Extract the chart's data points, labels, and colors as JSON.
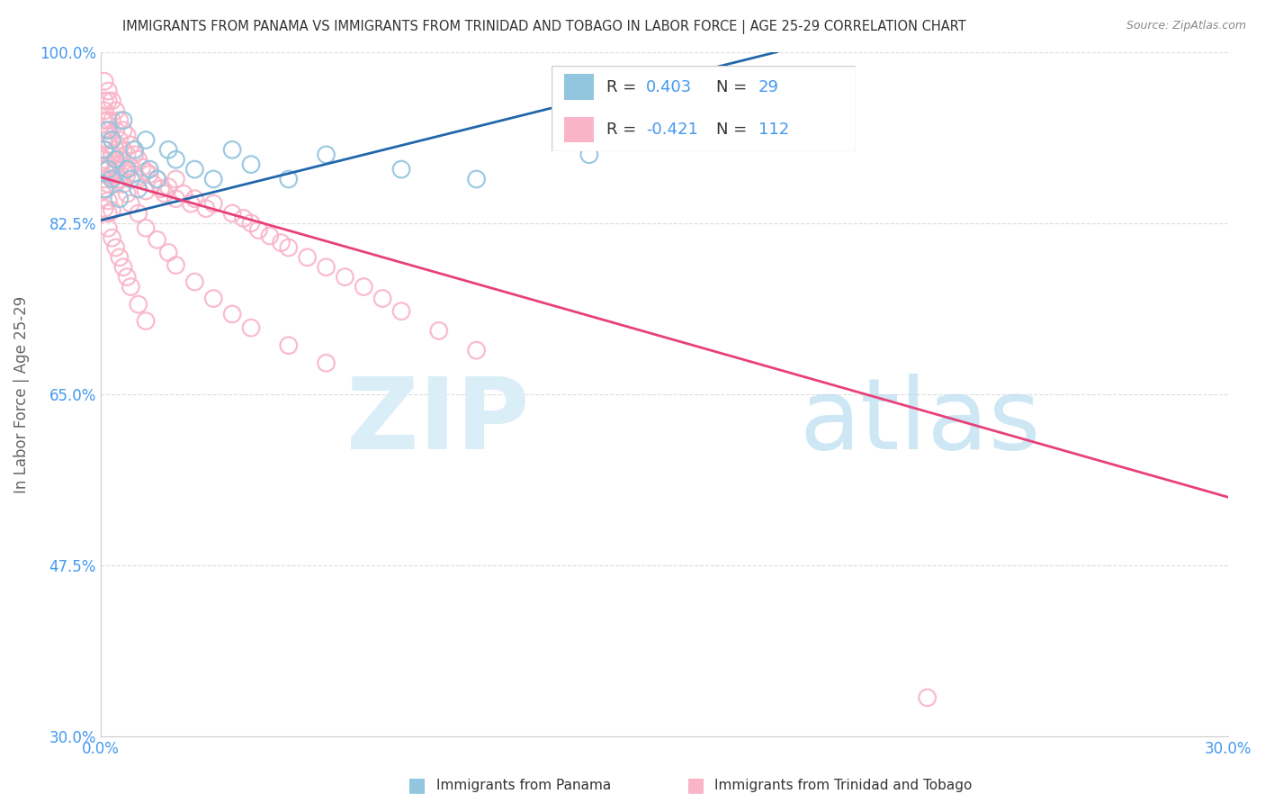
{
  "title": "IMMIGRANTS FROM PANAMA VS IMMIGRANTS FROM TRINIDAD AND TOBAGO IN LABOR FORCE | AGE 25-29 CORRELATION CHART",
  "source": "Source: ZipAtlas.com",
  "ylabel": "In Labor Force | Age 25-29",
  "xlabel_panama": "Immigrants from Panama",
  "xlabel_tt": "Immigrants from Trinidad and Tobago",
  "xlim": [
    0.0,
    0.3
  ],
  "ylim": [
    0.3,
    1.0
  ],
  "yticks": [
    1.0,
    0.825,
    0.65,
    0.475,
    0.3
  ],
  "ytick_labels": [
    "100.0%",
    "82.5%",
    "65.0%",
    "47.5%",
    "30.0%"
  ],
  "xtick_positions": [
    0.0,
    0.05,
    0.1,
    0.15,
    0.2,
    0.25,
    0.3
  ],
  "xtick_labels": [
    "0.0%",
    "",
    "",
    "",
    "",
    "",
    "30.0%"
  ],
  "panama_scatter_color": "#92c5de",
  "tt_scatter_color": "#f9b4c8",
  "panama_line_color": "#2166ac",
  "tt_line_color": "#e8417a",
  "R_panama": 0.403,
  "N_panama": 29,
  "R_tt": -0.421,
  "N_tt": 112,
  "blue_color": "#4499ee",
  "text_color": "#333333",
  "grid_color": "#dddddd",
  "panama_line_x": [
    0.0,
    0.18
  ],
  "panama_line_y": [
    0.828,
    1.0
  ],
  "tt_line_x": [
    0.0,
    0.3
  ],
  "tt_line_y": [
    0.872,
    0.545
  ],
  "panama_scatter_x": [
    0.001,
    0.001,
    0.002,
    0.002,
    0.003,
    0.003,
    0.004,
    0.005,
    0.006,
    0.007,
    0.008,
    0.009,
    0.01,
    0.012,
    0.013,
    0.015,
    0.018,
    0.02,
    0.025,
    0.03,
    0.035,
    0.04,
    0.05,
    0.06,
    0.08,
    0.1,
    0.13,
    0.155,
    0.175
  ],
  "panama_scatter_y": [
    0.86,
    0.9,
    0.88,
    0.92,
    0.91,
    0.87,
    0.89,
    0.85,
    0.93,
    0.88,
    0.87,
    0.9,
    0.86,
    0.91,
    0.88,
    0.87,
    0.9,
    0.89,
    0.88,
    0.87,
    0.9,
    0.885,
    0.87,
    0.895,
    0.88,
    0.87,
    0.895,
    0.93,
    0.94
  ],
  "tt_scatter_x": [
    0.001,
    0.001,
    0.001,
    0.001,
    0.001,
    0.001,
    0.001,
    0.001,
    0.001,
    0.001,
    0.002,
    0.002,
    0.002,
    0.002,
    0.002,
    0.002,
    0.002,
    0.003,
    0.003,
    0.003,
    0.003,
    0.003,
    0.004,
    0.004,
    0.004,
    0.004,
    0.005,
    0.005,
    0.005,
    0.005,
    0.006,
    0.006,
    0.006,
    0.007,
    0.007,
    0.007,
    0.008,
    0.008,
    0.009,
    0.009,
    0.01,
    0.01,
    0.011,
    0.012,
    0.012,
    0.013,
    0.014,
    0.015,
    0.016,
    0.017,
    0.018,
    0.02,
    0.02,
    0.022,
    0.024,
    0.025,
    0.028,
    0.03,
    0.035,
    0.038,
    0.04,
    0.042,
    0.045,
    0.048,
    0.05,
    0.055,
    0.06,
    0.065,
    0.07,
    0.075,
    0.08,
    0.09,
    0.1,
    0.001,
    0.001,
    0.002,
    0.002,
    0.003,
    0.003,
    0.004,
    0.004,
    0.005,
    0.006,
    0.007,
    0.008,
    0.01,
    0.012,
    0.015,
    0.018,
    0.02,
    0.025,
    0.03,
    0.035,
    0.04,
    0.05,
    0.06,
    0.001,
    0.002,
    0.003,
    0.22,
    0.001,
    0.001,
    0.002,
    0.002,
    0.003,
    0.004,
    0.005,
    0.006,
    0.007,
    0.008,
    0.01,
    0.012
  ],
  "tt_scatter_y": [
    0.97,
    0.95,
    0.94,
    0.93,
    0.92,
    0.91,
    0.9,
    0.89,
    0.88,
    0.87,
    0.96,
    0.95,
    0.93,
    0.91,
    0.895,
    0.88,
    0.865,
    0.95,
    0.93,
    0.91,
    0.895,
    0.875,
    0.94,
    0.92,
    0.9,
    0.88,
    0.93,
    0.91,
    0.89,
    0.87,
    0.92,
    0.9,
    0.88,
    0.915,
    0.895,
    0.875,
    0.905,
    0.882,
    0.895,
    0.875,
    0.89,
    0.87,
    0.882,
    0.878,
    0.858,
    0.875,
    0.865,
    0.87,
    0.86,
    0.855,
    0.862,
    0.87,
    0.85,
    0.855,
    0.845,
    0.85,
    0.84,
    0.845,
    0.835,
    0.83,
    0.825,
    0.818,
    0.812,
    0.805,
    0.8,
    0.79,
    0.78,
    0.77,
    0.76,
    0.748,
    0.735,
    0.715,
    0.695,
    0.92,
    0.9,
    0.905,
    0.885,
    0.895,
    0.875,
    0.885,
    0.865,
    0.875,
    0.865,
    0.855,
    0.845,
    0.835,
    0.82,
    0.808,
    0.795,
    0.782,
    0.765,
    0.748,
    0.732,
    0.718,
    0.7,
    0.682,
    0.86,
    0.848,
    0.838,
    0.34,
    0.858,
    0.84,
    0.835,
    0.82,
    0.81,
    0.8,
    0.79,
    0.78,
    0.77,
    0.76,
    0.742,
    0.725
  ]
}
